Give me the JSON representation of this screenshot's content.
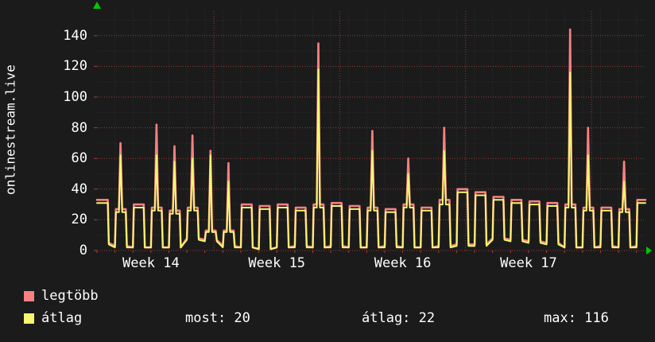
{
  "chart_data": {
    "type": "line",
    "title": "onlinestream.live",
    "summary": {
      "most": 20,
      "atlag": 22,
      "max": 116
    },
    "colors": {
      "background": "#1b1b1b",
      "text": "#ffffff",
      "grid_major": "#a83c3c",
      "grid_minor": "#2e2e2e",
      "arrow": "#00c800"
    },
    "y_axis": {
      "ticks": [
        0,
        20,
        40,
        60,
        80,
        100,
        120,
        140
      ],
      "max": 157
    },
    "x_axis": {
      "labels": [
        "Week 14",
        "Week 15",
        "Week 16",
        "Week 17"
      ],
      "label_days": [
        3,
        10,
        17,
        24
      ],
      "week_grid_days": [
        6.5,
        13.5,
        20.5,
        27.5
      ],
      "days_total": 30.5
    },
    "series": [
      {
        "name": "legtöbb",
        "color": "#f88080"
      },
      {
        "name": "átlag",
        "color": "#f6f670"
      }
    ],
    "days": [
      {
        "b": [
          33,
          31
        ],
        "n": [
          5,
          4
        ],
        "s": null
      },
      {
        "b": [
          27,
          25
        ],
        "n": [
          3,
          2
        ],
        "s": [
          70,
          62
        ]
      },
      {
        "b": [
          30,
          28
        ],
        "n": [
          2,
          2
        ],
        "s": null
      },
      {
        "b": [
          28,
          26
        ],
        "n": [
          2,
          2
        ],
        "s": [
          82,
          62
        ]
      },
      {
        "b": [
          26,
          24
        ],
        "n": [
          2,
          2
        ],
        "s": [
          68,
          58
        ]
      },
      {
        "b": [
          28,
          26
        ],
        "n": [
          8,
          7
        ],
        "s": [
          75,
          60
        ]
      },
      {
        "b": [
          13,
          12
        ],
        "n": [
          7,
          6
        ],
        "s": [
          65,
          62
        ]
      },
      {
        "b": [
          13,
          12
        ],
        "n": [
          3,
          2
        ],
        "s": [
          57,
          45
        ]
      },
      {
        "b": [
          30,
          28
        ],
        "n": [
          2,
          2
        ],
        "s": null
      },
      {
        "b": [
          29,
          27
        ],
        "n": [
          1,
          1
        ],
        "s": null
      },
      {
        "b": [
          30,
          28
        ],
        "n": [
          2,
          2
        ],
        "s": null
      },
      {
        "b": [
          28,
          26
        ],
        "n": [
          3,
          2
        ],
        "s": null
      },
      {
        "b": [
          30,
          28
        ],
        "n": [
          2,
          2
        ],
        "s": [
          135,
          118
        ]
      },
      {
        "b": [
          31,
          29
        ],
        "n": [
          3,
          2
        ],
        "s": null
      },
      {
        "b": [
          29,
          27
        ],
        "n": [
          2,
          2
        ],
        "s": null
      },
      {
        "b": [
          28,
          26
        ],
        "n": [
          2,
          2
        ],
        "s": [
          78,
          65
        ]
      },
      {
        "b": [
          27,
          25
        ],
        "n": [
          3,
          2
        ],
        "s": null
      },
      {
        "b": [
          30,
          28
        ],
        "n": [
          2,
          2
        ],
        "s": [
          60,
          50
        ]
      },
      {
        "b": [
          28,
          26
        ],
        "n": [
          2,
          2
        ],
        "s": null
      },
      {
        "b": [
          33,
          30
        ],
        "n": [
          3,
          2
        ],
        "s": [
          80,
          65
        ]
      },
      {
        "b": [
          40,
          38
        ],
        "n": [
          4,
          3
        ],
        "s": null
      },
      {
        "b": [
          38,
          36
        ],
        "n": [
          4,
          3
        ],
        "s": null
      },
      {
        "b": [
          35,
          33
        ],
        "n": [
          8,
          7
        ],
        "s": null
      },
      {
        "b": [
          33,
          31
        ],
        "n": [
          7,
          6
        ],
        "s": null
      },
      {
        "b": [
          32,
          30
        ],
        "n": [
          6,
          5
        ],
        "s": null
      },
      {
        "b": [
          31,
          29
        ],
        "n": [
          5,
          4
        ],
        "s": null
      },
      {
        "b": [
          30,
          28
        ],
        "n": [
          2,
          2
        ],
        "s": [
          144,
          116
        ]
      },
      {
        "b": [
          28,
          26
        ],
        "n": [
          2,
          2
        ],
        "s": [
          80,
          62
        ]
      },
      {
        "b": [
          28,
          26
        ],
        "n": [
          3,
          2
        ],
        "s": null
      },
      {
        "b": [
          27,
          25
        ],
        "n": [
          2,
          2
        ],
        "s": [
          58,
          45
        ]
      },
      {
        "b": [
          33,
          31
        ],
        "n": [
          3,
          2
        ],
        "s": null
      }
    ]
  },
  "legend": {
    "most": "most: 20",
    "atlag": "átlag: 22",
    "max": "max: 116"
  }
}
